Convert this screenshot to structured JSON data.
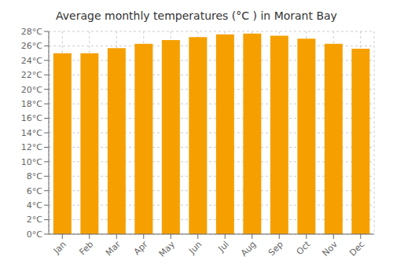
{
  "chart_data": {
    "type": "bar",
    "title": "Average monthly temperatures (°C ) in Morant Bay",
    "categories": [
      "Jan",
      "Feb",
      "Mar",
      "Apr",
      "May",
      "Jun",
      "Jul",
      "Aug",
      "Sep",
      "Oct",
      "Nov",
      "Dec"
    ],
    "values": [
      25.0,
      25.0,
      25.7,
      26.3,
      26.8,
      27.2,
      27.6,
      27.7,
      27.4,
      27.0,
      26.3,
      25.6
    ],
    "color": "#F5A000",
    "ylim": [
      0,
      28
    ],
    "yticks": [
      {
        "value": 0,
        "label": "0°C"
      },
      {
        "value": 2,
        "label": "2°C"
      },
      {
        "value": 4,
        "label": "4°C"
      },
      {
        "value": 6,
        "label": "6°C"
      },
      {
        "value": 8,
        "label": "8°C"
      },
      {
        "value": 10,
        "label": "10°C"
      },
      {
        "value": 12,
        "label": "12°C"
      },
      {
        "value": 14,
        "label": "14°C"
      },
      {
        "value": 16,
        "label": "16°C"
      },
      {
        "value": 18,
        "label": "18°C"
      },
      {
        "value": 20,
        "label": "20°C"
      },
      {
        "value": 22,
        "label": "22°C"
      },
      {
        "value": 24,
        "label": "24°C"
      },
      {
        "value": 26,
        "label": "26°C"
      },
      {
        "value": 28,
        "label": "28°C"
      }
    ],
    "grid": true
  }
}
